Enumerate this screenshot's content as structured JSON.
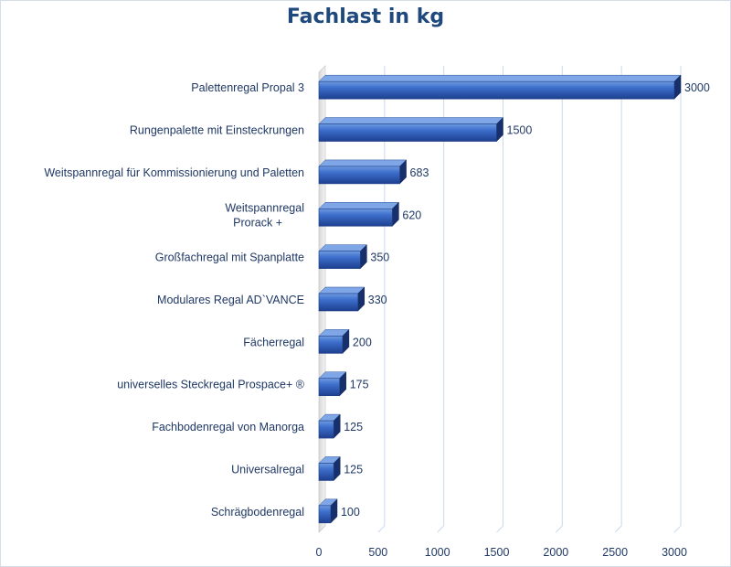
{
  "chart_data": {
    "type": "bar",
    "orientation": "horizontal",
    "title": "Fachlast in kg",
    "categories": [
      [
        "Palettenregal Propal 3"
      ],
      [
        "Rungenpalette mit Einsteckrungen"
      ],
      [
        "Weitspannregal für Kommissionierung und Paletten"
      ],
      [
        "Weitspannregal",
        "Prorack +"
      ],
      [
        "Großfachregal mit Spanplatte"
      ],
      [
        "Modulares Regal AD`VANCE"
      ],
      [
        "Fächerregal"
      ],
      [
        "universelles Steckregal Prospace+ ®"
      ],
      [
        "Fachbodenregal von Manorga"
      ],
      [
        "Universalregal"
      ],
      [
        "Schrägbodenregal"
      ]
    ],
    "values": [
      3000,
      1500,
      683,
      620,
      350,
      330,
      200,
      175,
      125,
      125,
      100
    ],
    "xlim": [
      0,
      3000
    ],
    "xticks": [
      0,
      500,
      1000,
      1500,
      2000,
      2500,
      3000
    ],
    "grid": true,
    "legend": "none",
    "colors": {
      "bar_light": "#4f81d1",
      "bar_mid": "#2e5cb8",
      "bar_dark": "#17306b",
      "grid": "#c9daf0",
      "text": "#1f3864",
      "title": "#1f497d"
    }
  }
}
